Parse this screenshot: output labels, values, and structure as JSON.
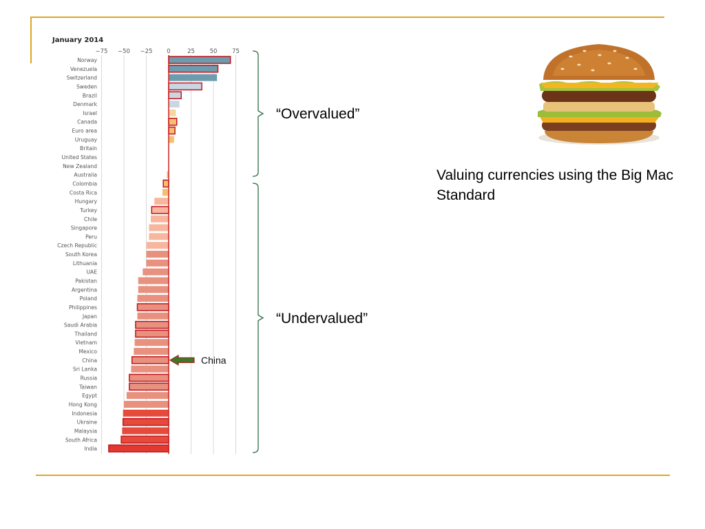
{
  "caption": "Valuing currencies using the Big Mac Standard",
  "brackets": {
    "overvalued": "“Overvalued”",
    "undervalued": "“Undervalued”"
  },
  "image": {
    "name": "big-mac-burger"
  },
  "colors": {
    "accent_rule": "#e0a523",
    "highlight_outline": "#c0141c",
    "arrow": "#3a7a2a"
  },
  "chart_data": {
    "type": "bar",
    "orientation": "horizontal",
    "title": "January 2014",
    "xticks": [
      -75,
      -50,
      -25,
      0,
      25,
      50,
      75
    ],
    "xlim": [
      -75,
      85
    ],
    "grid": true,
    "annotation": {
      "text": "China",
      "target": "China"
    },
    "categories": [
      "Norway",
      "Venezuela",
      "Switzerland",
      "Sweden",
      "Brazil",
      "Denmark",
      "Israel",
      "Canada",
      "Euro area",
      "Uruguay",
      "Britain",
      "United States",
      "New Zealand",
      "Australia",
      "Colombia",
      "Costa Rica",
      "Hungary",
      "Turkey",
      "Chile",
      "Singapore",
      "Peru",
      "Czech Republic",
      "South Korea",
      "Lithuania",
      "UAE",
      "Pakistan",
      "Argentina",
      "Poland",
      "Philippines",
      "Japan",
      "Saudi Arabia",
      "Thailand",
      "Vietnam",
      "Mexico",
      "China",
      "Sri Lanka",
      "Russia",
      "Taiwan",
      "Egypt",
      "Hong Kong",
      "Indonesia",
      "Ukraine",
      "Malaysia",
      "South Africa",
      "India"
    ],
    "values": [
      69,
      55,
      54,
      37,
      14,
      12,
      8,
      9,
      7,
      6,
      0,
      0,
      0,
      -2,
      -6,
      -7,
      -16,
      -19,
      -20,
      -22,
      -22,
      -25,
      -25,
      -25,
      -29,
      -34,
      -34,
      -35,
      -35,
      -35,
      -37,
      -37,
      -38,
      -39,
      -41,
      -42,
      -44,
      -44,
      -47,
      -50,
      -51,
      -51,
      -52,
      -53,
      -67
    ],
    "colors": [
      "#6d9cae",
      "#6d9cae",
      "#6d9cae",
      "#c9d7e3",
      "#c9d7e3",
      "#c9d7e3",
      "#f4d6a0",
      "#f4c070",
      "#f4c070",
      "#f4c070",
      "#f4c070",
      "#f4c070",
      "#f4c070",
      "#f4c070",
      "#f4c070",
      "#f4c070",
      "#f7b79f",
      "#f7b79f",
      "#f7b79f",
      "#f7b79f",
      "#f7b79f",
      "#f7b79f",
      "#e7917e",
      "#e7917e",
      "#e7917e",
      "#e7917e",
      "#e7917e",
      "#e7917e",
      "#e7917e",
      "#e7917e",
      "#e7917e",
      "#e7917e",
      "#e7917e",
      "#e7917e",
      "#e7917e",
      "#e7917e",
      "#e7917e",
      "#e7917e",
      "#e7917e",
      "#e7917e",
      "#e54a3a",
      "#e54a3a",
      "#e54a3a",
      "#e54a3a",
      "#e03a30"
    ],
    "highlighted": [
      "Norway",
      "Venezuela",
      "Sweden",
      "Brazil",
      "Canada",
      "Euro area",
      "Colombia",
      "Turkey",
      "Philippines",
      "Saudi Arabia",
      "Thailand",
      "China",
      "Russia",
      "Taiwan",
      "Ukraine",
      "South Africa",
      "India"
    ]
  }
}
